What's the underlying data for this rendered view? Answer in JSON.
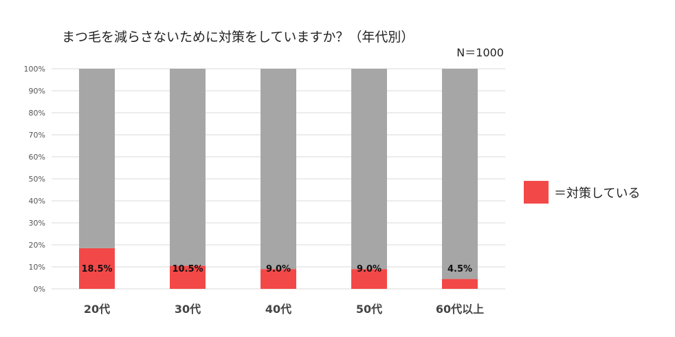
{
  "chart_data": {
    "type": "bar",
    "stacked": true,
    "title": "まつ毛を減らさないために対策をしていますか？（年代別）",
    "sample_size": "N＝1000",
    "categories": [
      "20代",
      "30代",
      "40代",
      "50代",
      "60代以上"
    ],
    "series": [
      {
        "name": "＝対策している",
        "values": [
          18.5,
          10.5,
          9.0,
          9.0,
          4.5
        ],
        "color": "#f34848"
      },
      {
        "values": [
          81.5,
          89.5,
          91.0,
          91.0,
          95.5
        ],
        "color": "#a6a6a6"
      }
    ],
    "data_labels": [
      "18.5%",
      "10.5%",
      "9.0%",
      "9.0%",
      "4.5%"
    ],
    "yticks": [
      "0%",
      "10%",
      "20%",
      "30%",
      "40%",
      "50%",
      "60%",
      "70%",
      "80%",
      "90%",
      "100%"
    ],
    "ylim": [
      0,
      100
    ],
    "grid": true,
    "legend_position": "right"
  }
}
